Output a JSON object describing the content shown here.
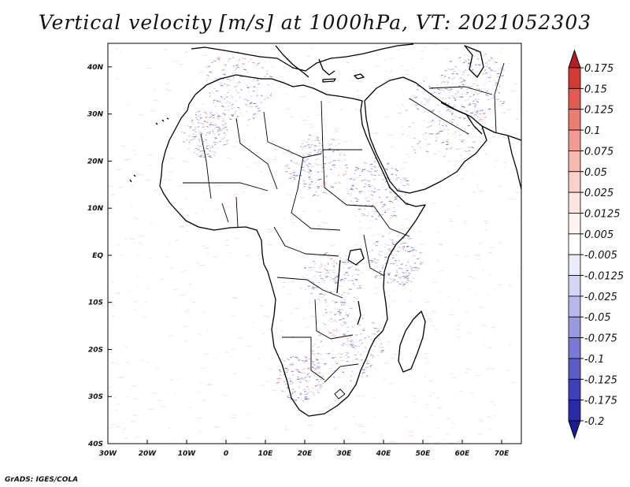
{
  "title": "Vertical velocity [m/s] at 1000hPa, VT: 2021052303",
  "credit": "GrADS: IGES/COLA",
  "map": {
    "lon_range": [
      -30,
      75
    ],
    "lat_range": [
      -40,
      45
    ],
    "x_ticks": [
      {
        "value": -30,
        "label": "30W"
      },
      {
        "value": -20,
        "label": "20W"
      },
      {
        "value": -10,
        "label": "10W"
      },
      {
        "value": 0,
        "label": "0"
      },
      {
        "value": 10,
        "label": "10E"
      },
      {
        "value": 20,
        "label": "20E"
      },
      {
        "value": 30,
        "label": "30E"
      },
      {
        "value": 40,
        "label": "40E"
      },
      {
        "value": 50,
        "label": "50E"
      },
      {
        "value": 60,
        "label": "60E"
      },
      {
        "value": 70,
        "label": "70E"
      }
    ],
    "y_ticks": [
      {
        "value": 40,
        "label": "40N"
      },
      {
        "value": 30,
        "label": "30N"
      },
      {
        "value": 20,
        "label": "20N"
      },
      {
        "value": 10,
        "label": "10N"
      },
      {
        "value": 0,
        "label": "EQ"
      },
      {
        "value": -10,
        "label": "10S"
      },
      {
        "value": -20,
        "label": "20S"
      },
      {
        "value": -30,
        "label": "30S"
      },
      {
        "value": -40,
        "label": "40S"
      }
    ]
  },
  "colorbar": {
    "levels": [
      "0.175",
      "0.15",
      "0.125",
      "0.1",
      "0.075",
      "0.05",
      "0.025",
      "0.0125",
      "0.005",
      "-0.005",
      "-0.0125",
      "-0.025",
      "-0.05",
      "-0.075",
      "-0.1",
      "-0.125",
      "-0.175",
      "-0.2"
    ],
    "colors": [
      "#b41e23",
      "#d43a34",
      "#e55a4f",
      "#ee7c70",
      "#f39b92",
      "#f7b8b0",
      "#fad0ca",
      "#fce4e0",
      "#fff2f0",
      "#ffffff",
      "#ebebfa",
      "#d4d4f4",
      "#b8b8ec",
      "#9999e2",
      "#7a7ad6",
      "#5c5cc8",
      "#3f3fba",
      "#2a2aa8",
      "#1c1c95"
    ]
  }
}
